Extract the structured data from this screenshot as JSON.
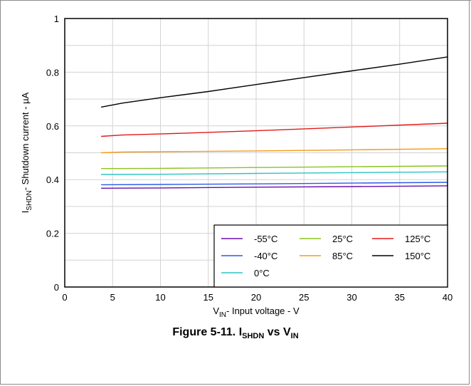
{
  "caption": {
    "prefix": "Figure 5-11. I",
    "sub1": "SHDN",
    "mid": " vs V",
    "sub2": "IN"
  },
  "chart_data": {
    "type": "line",
    "xlabel": {
      "main": "V",
      "sub": "IN",
      "rest": "- Input voltage - V"
    },
    "ylabel": {
      "main": "I",
      "sub": "SHDN",
      "rest": "- Shutdown current - µA"
    },
    "xlim": [
      0,
      40
    ],
    "ylim": [
      0,
      1
    ],
    "xticks": [
      0,
      5,
      10,
      15,
      20,
      25,
      30,
      35,
      40
    ],
    "yticks": [
      0,
      0.2,
      0.4,
      0.6,
      0.8,
      1
    ],
    "ytick_labels": [
      "0",
      "0.2",
      "0.4",
      "0.6",
      "0.8",
      "1"
    ],
    "grid": true,
    "legend_position": "bottom-right",
    "series": [
      {
        "name": "-55°C",
        "color": "#6a0dad",
        "x": [
          3.8,
          10,
          20,
          30,
          40
        ],
        "y": [
          0.368,
          0.369,
          0.372,
          0.374,
          0.377
        ]
      },
      {
        "name": "-40°C",
        "color": "#2b5be8",
        "x": [
          3.8,
          10,
          20,
          30,
          40
        ],
        "y": [
          0.381,
          0.382,
          0.384,
          0.387,
          0.39
        ]
      },
      {
        "name": "0°C",
        "color": "#2ec4c4",
        "x": [
          3.8,
          10,
          20,
          30,
          40
        ],
        "y": [
          0.419,
          0.42,
          0.423,
          0.426,
          0.429
        ]
      },
      {
        "name": "25°C",
        "color": "#8dc21f",
        "x": [
          3.8,
          10,
          20,
          30,
          40
        ],
        "y": [
          0.441,
          0.442,
          0.445,
          0.448,
          0.451
        ]
      },
      {
        "name": "85°C",
        "color": "#f59a16",
        "x": [
          3.8,
          6,
          10,
          20,
          30,
          40
        ],
        "y": [
          0.5,
          0.503,
          0.504,
          0.507,
          0.511,
          0.515
        ]
      },
      {
        "name": "125°C",
        "color": "#e01a1a",
        "x": [
          3.8,
          6,
          10,
          20,
          30,
          40
        ],
        "y": [
          0.561,
          0.566,
          0.57,
          0.582,
          0.596,
          0.61
        ]
      },
      {
        "name": "150°C",
        "color": "#000000",
        "x": [
          3.8,
          6,
          10,
          15,
          20,
          25,
          30,
          35,
          40
        ],
        "y": [
          0.67,
          0.685,
          0.705,
          0.728,
          0.754,
          0.78,
          0.805,
          0.83,
          0.857
        ]
      }
    ],
    "legend_layout": [
      [
        "-55°C",
        "25°C",
        "125°C"
      ],
      [
        "-40°C",
        "85°C",
        "150°C"
      ],
      [
        "0°C"
      ]
    ]
  }
}
